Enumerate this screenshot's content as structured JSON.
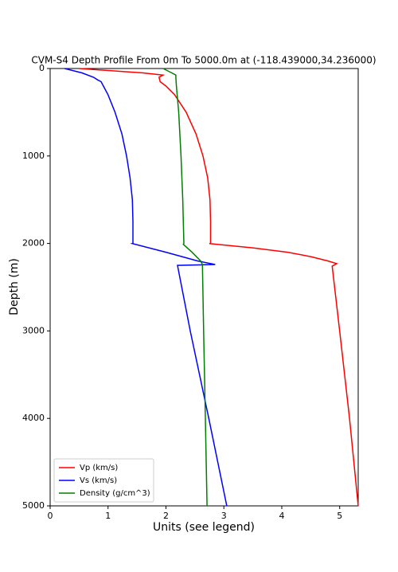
{
  "chart_data": {
    "type": "line",
    "title": "CVM-S4 Depth Profile From 0m To 5000.0m at (-118.439000,34.236000)",
    "x_label": "Units (see legend)",
    "y_label": "Depth (m)",
    "xlim": [
      0,
      5.32
    ],
    "xticks": [
      0,
      1,
      2,
      3,
      4,
      5
    ],
    "ylim": [
      0,
      5000
    ],
    "yticks": [
      0,
      1000,
      2000,
      3000,
      4000,
      5000
    ],
    "y_inverted": true,
    "legend": "lower left",
    "series": [
      {
        "name": "Vp (km/s)",
        "color": "#ff0000",
        "depth": [
          0,
          50,
          75,
          100,
          150,
          200,
          300,
          500,
          750,
          1000,
          1250,
          1500,
          1750,
          1999,
          2001,
          2050,
          2100,
          2150,
          2200,
          2230,
          2260,
          3000,
          4000,
          5000
        ],
        "values": [
          0.5,
          1.6,
          1.95,
          1.88,
          1.9,
          2.0,
          2.15,
          2.35,
          2.52,
          2.64,
          2.72,
          2.76,
          2.77,
          2.77,
          2.75,
          3.5,
          4.1,
          4.5,
          4.8,
          4.95,
          4.87,
          5.0,
          5.17,
          5.32
        ]
      },
      {
        "name": "Vs (km/s)",
        "color": "#0000ff",
        "depth": [
          0,
          50,
          100,
          130,
          150,
          200,
          300,
          500,
          750,
          1000,
          1250,
          1500,
          1750,
          1999,
          2001,
          2100,
          2200,
          2240,
          2250,
          3000,
          4000,
          5000
        ],
        "values": [
          0.25,
          0.55,
          0.75,
          0.82,
          0.88,
          0.92,
          1.0,
          1.12,
          1.24,
          1.32,
          1.38,
          1.42,
          1.43,
          1.43,
          1.42,
          2.0,
          2.55,
          2.85,
          2.2,
          2.42,
          2.74,
          3.05
        ]
      },
      {
        "name": "Density (g/cm^3)",
        "color": "#008000",
        "depth": [
          0,
          50,
          75,
          100,
          200,
          500,
          1000,
          1500,
          2000,
          2010,
          2100,
          2200,
          2240,
          3000,
          4000,
          5000
        ],
        "values": [
          1.95,
          2.1,
          2.17,
          2.17,
          2.18,
          2.22,
          2.26,
          2.29,
          2.31,
          2.3,
          2.45,
          2.6,
          2.63,
          2.65,
          2.68,
          2.71
        ]
      }
    ]
  }
}
